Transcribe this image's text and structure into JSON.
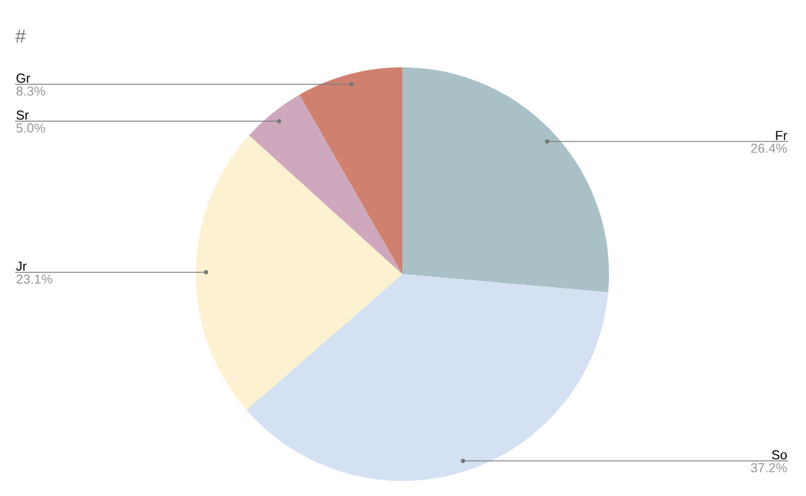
{
  "chart_data": {
    "type": "pie",
    "title": "#",
    "categories": [
      "Fr",
      "So",
      "Jr",
      "Sr",
      "Gr"
    ],
    "values": [
      26.4,
      37.2,
      23.1,
      5.0,
      8.3
    ],
    "value_labels": [
      "26.4%",
      "37.2%",
      "23.1%",
      "5.0%",
      "8.3%"
    ],
    "colors": [
      "#a9c1c6",
      "#d4e1f2",
      "#fcf1d1",
      "#cfa8bd",
      "#cf806e"
    ]
  }
}
